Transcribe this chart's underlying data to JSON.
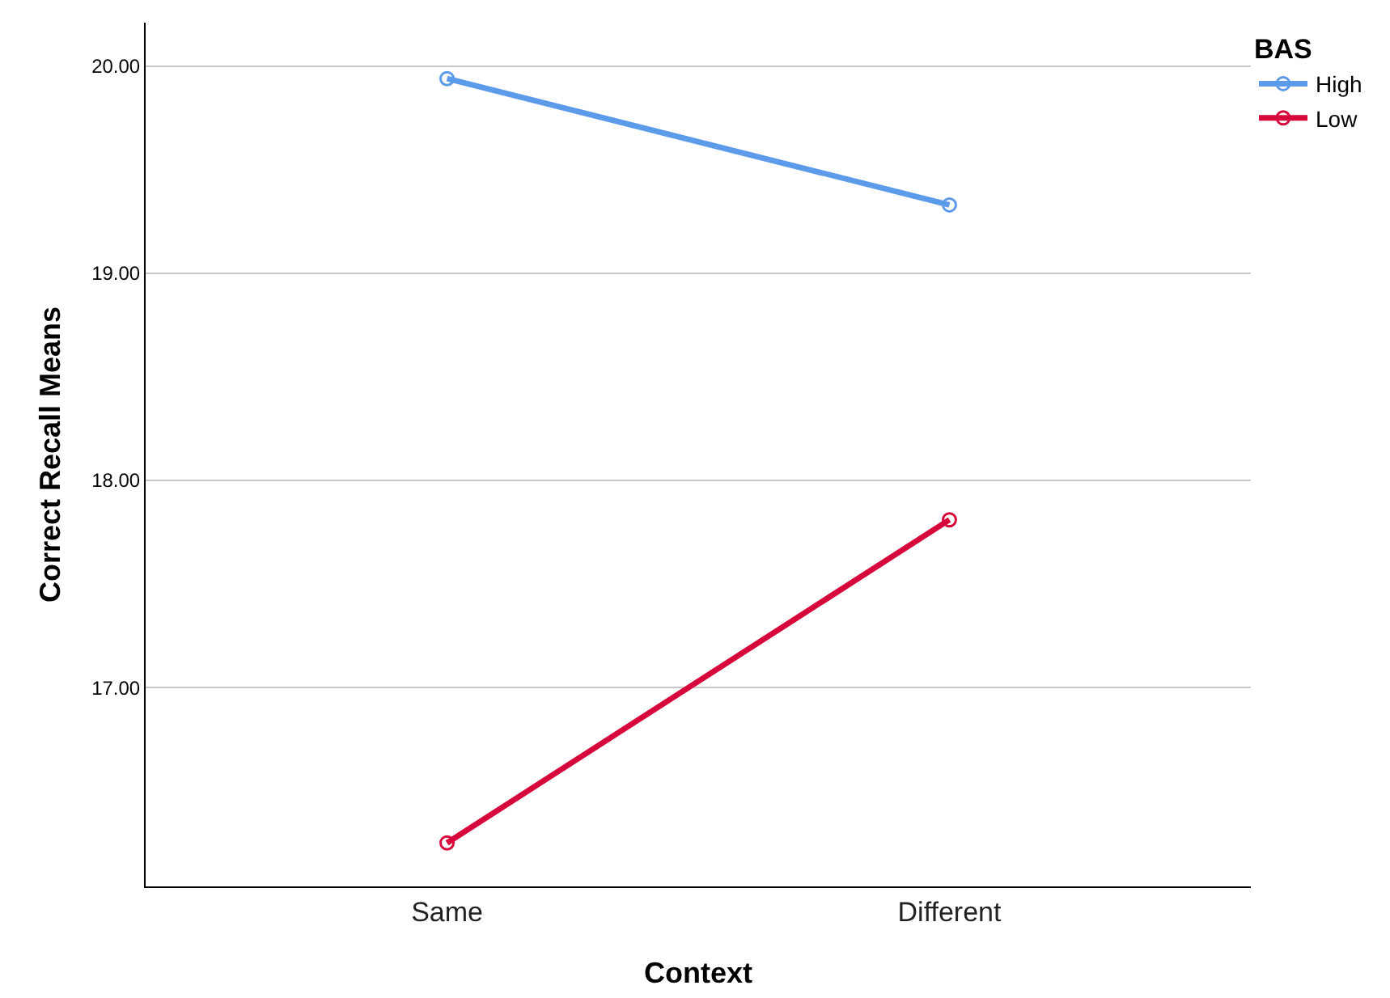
{
  "chart_data": {
    "type": "line",
    "xlabel": "Context",
    "ylabel": "Correct Recall Means",
    "legend_title": "BAS",
    "categories": [
      "Same",
      "Different"
    ],
    "series": [
      {
        "name": "High",
        "color": "#5b9bea",
        "values": [
          19.94,
          19.33
        ]
      },
      {
        "name": "Low",
        "color": "#d6083b",
        "values": [
          16.25,
          17.81
        ]
      }
    ],
    "ylim": [
      16.04,
      20.21
    ],
    "yticks": [
      {
        "value": 17,
        "label": "17.00"
      },
      {
        "value": 18,
        "label": "18.00"
      },
      {
        "value": 19,
        "label": "19.00"
      },
      {
        "value": 20,
        "label": "20.00"
      }
    ],
    "grid": "y",
    "legend": "top right",
    "marker": "circle",
    "line_style": "solid"
  }
}
